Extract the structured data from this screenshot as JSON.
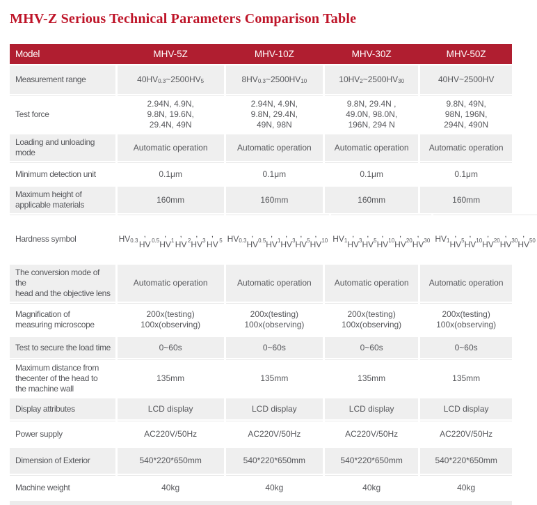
{
  "page": {
    "title": "MHV-Z Serious Technical Parameters Comparison Table"
  },
  "colors": {
    "title_text": "#BE1428",
    "header_bg": "#B01E30",
    "header_text": "#FFFFFF",
    "row_alt_bg": "#EFEFEF",
    "body_text": "#56575B",
    "hairline": "#E9E9E9",
    "bottom_strip": "#ECECEC"
  },
  "table": {
    "header": {
      "model_label": "Model",
      "columns": [
        "MHV-5Z",
        "MHV-10Z",
        "MHV-30Z",
        "MHV-50Z"
      ]
    },
    "rows": [
      {
        "label": "Measurement range",
        "values": [
          "40HV_{0.3}~2500HV_{5}",
          "8HV_{0.3}~2500HV_{10}",
          "10HV_{2}~2500HV_{30}",
          "40HV~2500HV"
        ]
      },
      {
        "label": "Test force",
        "values": [
          "2.94N, 4.9N,\n9.8N, 19.6N,\n29.4N, 49N",
          "2.94N, 4.9N,\n9.8N, 29.4N,\n49N, 98N",
          "9.8N, 29.4N ,\n49.0N, 98.0N,\n196N, 294 N",
          "9.8N, 49N,\n98N, 196N,\n294N, 490N"
        ]
      },
      {
        "label": "Loading and unloading mode",
        "values": [
          "Automatic operation",
          "Automatic operation",
          "Automatic operation",
          "Automatic operation"
        ]
      },
      {
        "label": "Minimum detection unit",
        "values": [
          "0.1μm",
          "0.1μm",
          "0.1μm",
          "0.1μm"
        ]
      },
      {
        "label": "Maximum height of\napplicable materials",
        "values": [
          "160mm",
          "160mm",
          "160mm",
          "160mm"
        ]
      },
      {
        "label": "Hardness symbol",
        "values": [
          "HV_{0.3}, HV_{0.5},\nHV_{1}, HV_{2},\nHV_{3}, HV_{5}",
          "HV_{0.3}, HV_{0.5},\nHV_{1}, HV_{3},\nHV_{5}, HV_{10}",
          "HV_{1}, HV_{3},\nHV_{5}, HV_{10},\nHV_{20}, HV_{30}",
          "HV_{1}, HV_{5},\nHV_{10}, HV_{20},\nHV_{30}, HV_{50}"
        ]
      },
      {
        "label": "The conversion mode of the\nhead and the objective lens",
        "values": [
          "Automatic operation",
          "Automatic operation",
          "Automatic operation",
          "Automatic operation"
        ]
      },
      {
        "label": "Magnification of\nmeasuring microscope",
        "values": [
          "200x(testing)\n100x(observing)",
          "200x(testing)\n100x(observing)",
          "200x(testing)\n100x(observing)",
          "200x(testing)\n100x(observing)"
        ]
      },
      {
        "label": "Test to secure the load time",
        "values": [
          "0~60s",
          "0~60s",
          "0~60s",
          "0~60s"
        ]
      },
      {
        "label": "Maximum distance from\nthecenter of the head to\nthe machine wall",
        "values": [
          "135mm",
          "135mm",
          "135mm",
          "135mm"
        ]
      },
      {
        "label": "Display attributes",
        "values": [
          "LCD display",
          "LCD display",
          "LCD display",
          "LCD display"
        ]
      },
      {
        "label": "Power supply",
        "values": [
          "AC220V/50Hz",
          "AC220V/50Hz",
          "AC220V/50Hz",
          "AC220V/50Hz"
        ]
      },
      {
        "label": "Dimension of Exterior",
        "values": [
          "540*220*650mm",
          "540*220*650mm",
          "540*220*650mm",
          "540*220*650mm"
        ]
      },
      {
        "label": "Machine weight",
        "values": [
          "40kg",
          "40kg",
          "40kg",
          "40kg"
        ]
      }
    ]
  }
}
